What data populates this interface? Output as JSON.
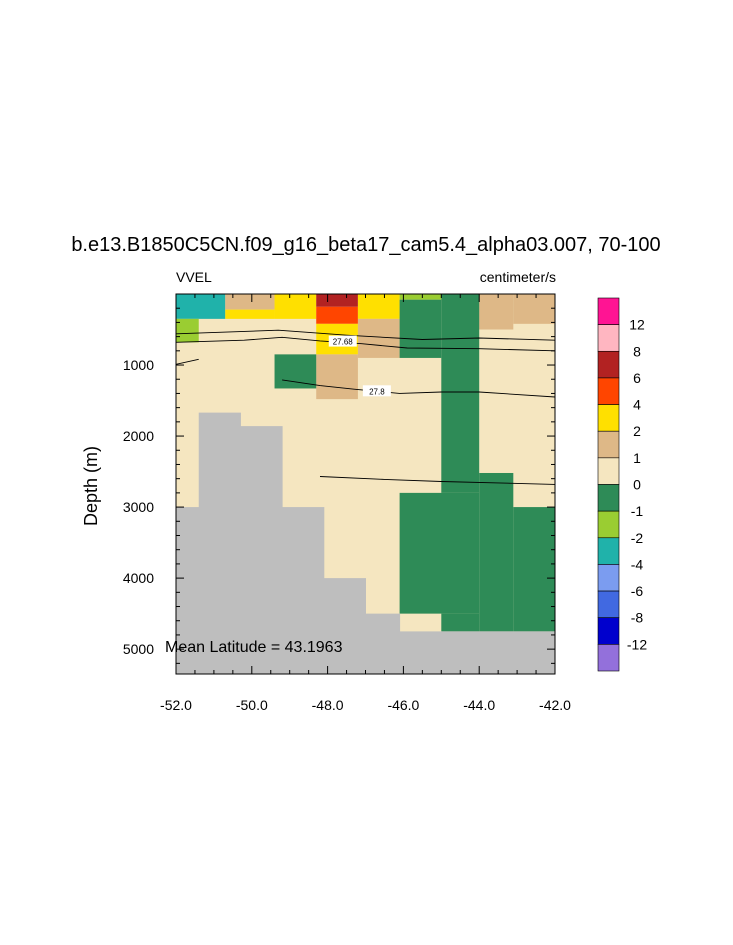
{
  "chart_data": {
    "type": "heatmap",
    "title": "b.e13.B1850C5CN.f09_g16_beta17_cam5.4_alpha03.007, 70-100",
    "left_label": "VVEL",
    "right_label": "centimeter/s",
    "ylabel": "Depth (m)",
    "annotation": "Mean Latitude = 43.1963",
    "xlim": [
      -52,
      -42
    ],
    "ylim": [
      5350,
      0
    ],
    "x_ticks": [
      "-52.0",
      "-50.0",
      "-48.0",
      "-46.0",
      "-44.0",
      "-42.0"
    ],
    "x_tick_values": [
      -52,
      -50,
      -48,
      -46,
      -44,
      -42
    ],
    "y_ticks": [
      "1000",
      "2000",
      "3000",
      "4000",
      "5000"
    ],
    "y_tick_values": [
      1000,
      2000,
      3000,
      4000,
      5000
    ],
    "background_color": "#f5e6c0",
    "land_color": "#bebebe",
    "colorbar": {
      "colors": [
        "#9370db",
        "#0000cd",
        "#4169e1",
        "#7b9cf0",
        "#20b2aa",
        "#9acd32",
        "#2e8b57",
        "#f5e6c0",
        "#deb887",
        "#ffe000",
        "#ff4500",
        "#b22222",
        "#ffb6c1",
        "#ff1493"
      ],
      "labels": [
        "-12",
        "-8",
        "-6",
        "-4",
        "-2",
        "-1",
        "0",
        "1",
        "2",
        "4",
        "6",
        "8",
        "12"
      ]
    },
    "cells": [
      {
        "x0": -52,
        "x1": -50.7,
        "y0": 0,
        "y1": 350,
        "v": -2
      },
      {
        "x0": -50.7,
        "x1": -49.4,
        "y0": 0,
        "y1": 220,
        "v": 2
      },
      {
        "x0": -50.7,
        "x1": -49.4,
        "y0": 220,
        "y1": 350,
        "v": 4
      },
      {
        "x0": -49.4,
        "x1": -48.3,
        "y0": 0,
        "y1": 350,
        "v": 4
      },
      {
        "x0": -48.3,
        "x1": -47.2,
        "y0": 0,
        "y1": 180,
        "v": 8
      },
      {
        "x0": -48.3,
        "x1": -47.2,
        "y0": 180,
        "y1": 420,
        "v": 6
      },
      {
        "x0": -48.3,
        "x1": -47.2,
        "y0": 420,
        "y1": 850,
        "v": 4
      },
      {
        "x0": -47.2,
        "x1": -46.1,
        "y0": 0,
        "y1": 350,
        "v": 4
      },
      {
        "x0": -46.1,
        "x1": -45.0,
        "y0": 0,
        "y1": 80,
        "v": -1
      },
      {
        "x0": -52,
        "x1": -51.4,
        "y0": 350,
        "y1": 680,
        "v": -1
      },
      {
        "x0": -47.2,
        "x1": -46.1,
        "y0": 350,
        "y1": 900,
        "v": 2
      },
      {
        "x0": -48.3,
        "x1": -47.2,
        "y0": 850,
        "y1": 1480,
        "v": 2
      },
      {
        "x0": -43.1,
        "x1": -42.0,
        "y0": 0,
        "y1": 420,
        "v": 2
      },
      {
        "x0": -44.2,
        "x1": -43.1,
        "y0": 0,
        "y1": 500,
        "v": 2
      },
      {
        "x0": -49.4,
        "x1": -48.3,
        "y0": 850,
        "y1": 1330,
        "v": 0
      },
      {
        "x0": -46.1,
        "x1": -45.0,
        "y0": 80,
        "y1": 900,
        "v": 0
      },
      {
        "x0": -45.0,
        "x1": -44.0,
        "y0": 0,
        "y1": 2800,
        "v": 0
      },
      {
        "x0": -44.0,
        "x1": -43.1,
        "y0": 2520,
        "y1": 4750,
        "v": 0
      },
      {
        "x0": -46.1,
        "x1": -44.0,
        "y0": 2800,
        "y1": 4500,
        "v": 0
      },
      {
        "x0": -45.0,
        "x1": -44.0,
        "y0": 4500,
        "y1": 4750,
        "v": 0
      },
      {
        "x0": -43.1,
        "x1": -42.0,
        "y0": 3000,
        "y1": 4750,
        "v": 0
      }
    ],
    "land": [
      {
        "x0": -52,
        "x1": -51.4,
        "y0": 3000,
        "y1": 5350
      },
      {
        "x0": -51.4,
        "x1": -50.3,
        "y0": 1670,
        "y1": 5350
      },
      {
        "x0": -50.3,
        "x1": -49.2,
        "y0": 1860,
        "y1": 5350
      },
      {
        "x0": -49.2,
        "x1": -48.1,
        "y0": 3000,
        "y1": 5350
      },
      {
        "x0": -48.1,
        "x1": -47.0,
        "y0": 4000,
        "y1": 5350
      },
      {
        "x0": -47.0,
        "x1": -46.1,
        "y0": 4500,
        "y1": 5350
      },
      {
        "x0": -46.1,
        "x1": -45.0,
        "y0": 4750,
        "y1": 5350
      },
      {
        "x0": -45.0,
        "x1": -42.0,
        "y0": 4750,
        "y1": 5350
      }
    ],
    "contours": [
      {
        "label": "",
        "points": [
          [
            -52,
            560
          ],
          [
            -49.3,
            510
          ],
          [
            -47.5,
            580
          ],
          [
            -45.5,
            640
          ],
          [
            -44,
            620
          ],
          [
            -42,
            650
          ]
        ]
      },
      {
        "label": "27.68",
        "label_at": [
          -47.6,
          670
        ],
        "points": [
          [
            -52,
            680
          ],
          [
            -50.2,
            650
          ],
          [
            -49.2,
            610
          ],
          [
            -48.2,
            660
          ],
          [
            -47.1,
            700
          ],
          [
            -45.9,
            760
          ],
          [
            -44,
            770
          ],
          [
            -42,
            800
          ]
        ]
      },
      {
        "label": "",
        "points": [
          [
            -52,
            990
          ],
          [
            -51.4,
            920
          ]
        ]
      },
      {
        "label": "27.8",
        "label_at": [
          -46.7,
          1370
        ],
        "points": [
          [
            -49.2,
            1210
          ],
          [
            -48.2,
            1290
          ],
          [
            -47.3,
            1340
          ],
          [
            -46.1,
            1400
          ],
          [
            -45,
            1380
          ],
          [
            -44,
            1380
          ],
          [
            -42,
            1450
          ]
        ]
      },
      {
        "label": "",
        "points": [
          [
            -48.2,
            2570
          ],
          [
            -46.5,
            2610
          ],
          [
            -45,
            2640
          ],
          [
            -43.5,
            2660
          ],
          [
            -42,
            2680
          ]
        ]
      }
    ]
  }
}
